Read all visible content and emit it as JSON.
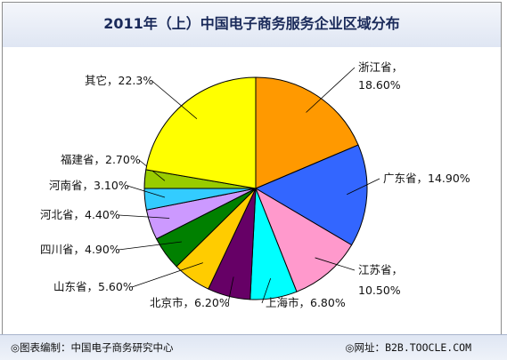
{
  "chart_data": {
    "type": "pie",
    "title": "2011年（上）中国电子商务服务企业区域分布",
    "slices": [
      {
        "label": "浙江省",
        "value": 18.6,
        "display": "18.60%",
        "color": "#ff9900"
      },
      {
        "label": "广东省",
        "value": 14.9,
        "display": "14.90%",
        "color": "#3366ff"
      },
      {
        "label": "江苏省",
        "value": 10.5,
        "display": "10.50%",
        "color": "#ff99cc"
      },
      {
        "label": "上海市",
        "value": 6.8,
        "display": "6.80%",
        "color": "#00ffff"
      },
      {
        "label": "北京市",
        "value": 6.2,
        "display": "6.20%",
        "color": "#660066"
      },
      {
        "label": "山东省",
        "value": 5.6,
        "display": "5.60%",
        "color": "#ffcc00"
      },
      {
        "label": "四川省",
        "value": 4.9,
        "display": "4.90%",
        "color": "#008000"
      },
      {
        "label": "河北省",
        "value": 4.4,
        "display": "4.40%",
        "color": "#cc99ff"
      },
      {
        "label": "河南省",
        "value": 3.1,
        "display": "3.10%",
        "color": "#33ccff"
      },
      {
        "label": "福建省",
        "value": 2.7,
        "display": "2.70%",
        "color": "#99cc00"
      },
      {
        "label": "其它",
        "value": 22.3,
        "display": "22.3%",
        "color": "#ffff00"
      }
    ]
  },
  "footer": {
    "source_prefix": "◎图表编制：",
    "source": "中国电子商务研究中心",
    "site_prefix": "◎网址：",
    "site": "B2B.TOOCLE.COM"
  }
}
